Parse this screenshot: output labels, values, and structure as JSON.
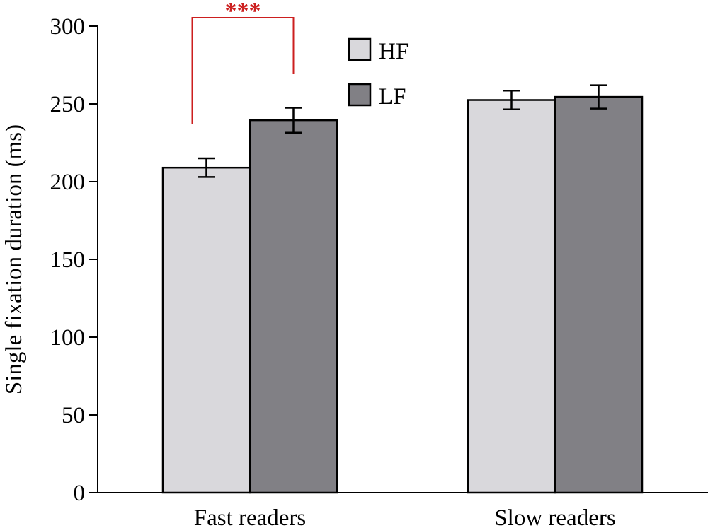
{
  "chart_data": {
    "type": "bar",
    "ylabel": "Single fixation duration (ms)",
    "xlabel": "",
    "ylim": [
      0,
      300
    ],
    "yticks": [
      0,
      50,
      100,
      150,
      200,
      250,
      300
    ],
    "categories": [
      "Fast readers",
      "Slow readers"
    ],
    "series": [
      {
        "name": "HF",
        "color": "#d9d8dc",
        "values": [
          209,
          252.5
        ],
        "errors": [
          6,
          6
        ]
      },
      {
        "name": "LF",
        "color": "#818085",
        "values": [
          239.5,
          254.5
        ],
        "errors": [
          8,
          7.5
        ]
      }
    ],
    "legend_position": "top-center",
    "annotations": [
      {
        "label": "***",
        "category": "Fast readers",
        "series_from": "HF",
        "series_to": "LF",
        "color": "#cc1f1f"
      }
    ],
    "grid": false
  }
}
